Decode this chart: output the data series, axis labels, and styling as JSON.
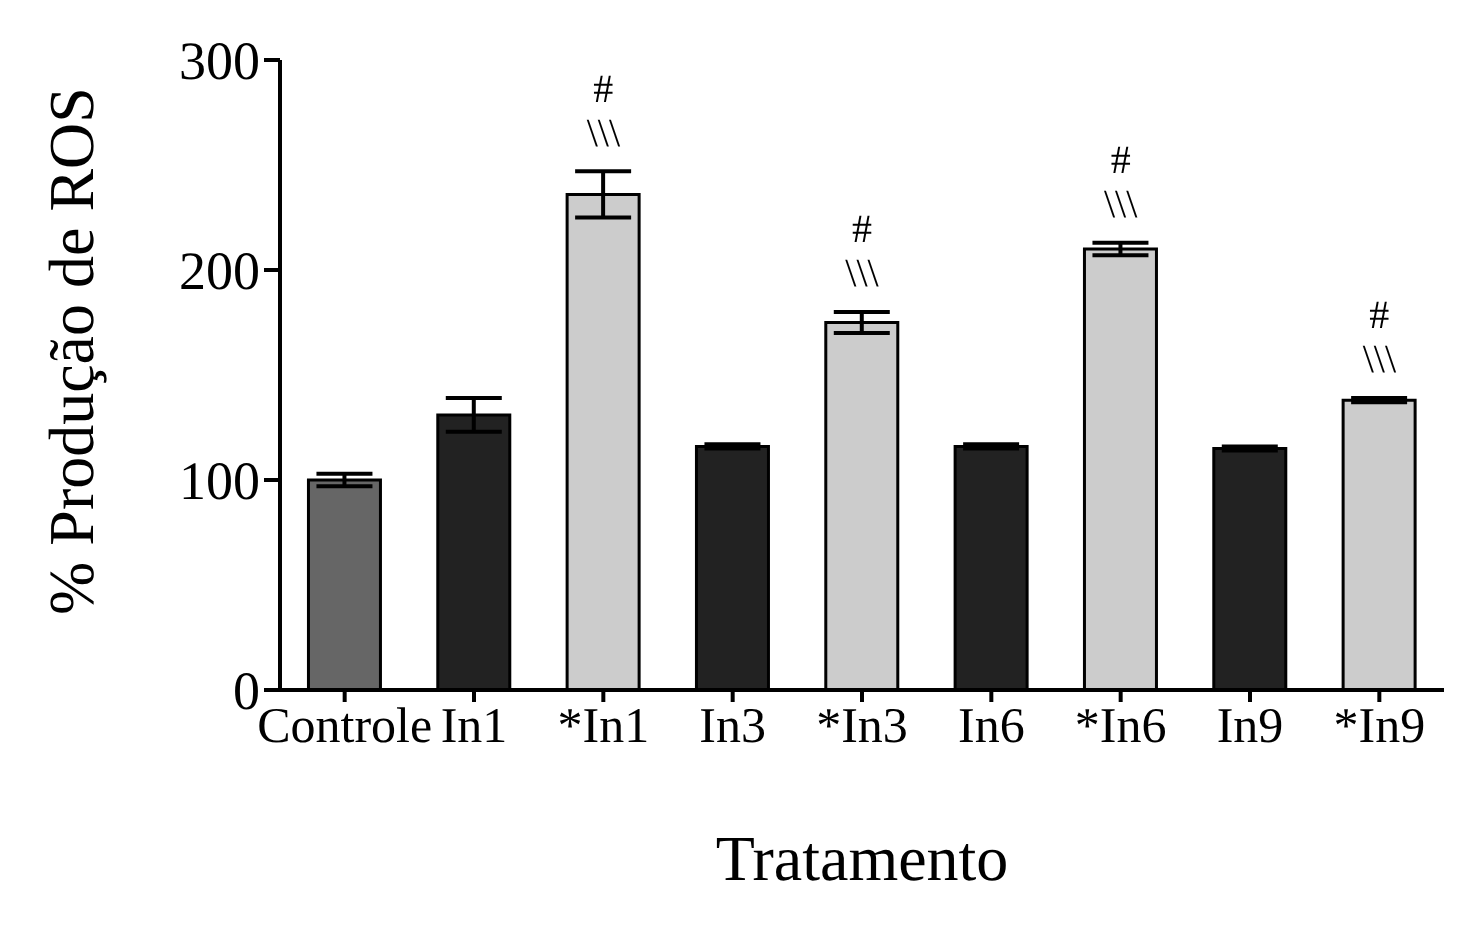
{
  "chart_data": {
    "type": "bar",
    "xlabel": "Tratamento",
    "ylabel": "% Produção de ROS",
    "categories": [
      "Controle",
      "In1",
      "*In1",
      "In3",
      "*In3",
      "In6",
      "*In6",
      "In9",
      "*In9"
    ],
    "values": [
      100,
      131,
      236,
      116,
      175,
      116,
      210,
      115,
      138
    ],
    "errors": [
      3,
      8,
      11,
      1,
      5,
      1,
      3,
      1,
      1
    ],
    "colors": [
      "#666666",
      "#222222",
      "#cccccc",
      "#222222",
      "#cccccc",
      "#222222",
      "#cccccc",
      "#222222",
      "#cccccc"
    ],
    "ylim": [
      0,
      300
    ],
    "yticks": [
      0,
      100,
      200,
      300
    ],
    "grid": false,
    "annotations": [
      "#",
      "\\\\\\",
      "#",
      "\\\\\\",
      "#",
      "\\\\\\",
      "#",
      "\\\\\\"
    ]
  }
}
